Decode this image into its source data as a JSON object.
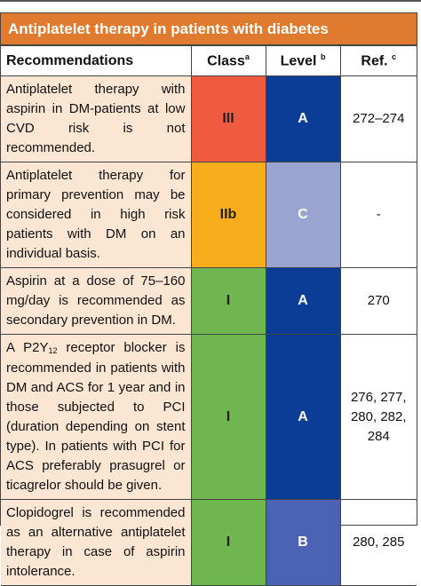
{
  "title": "Antiplatelet therapy in patients with diabetes",
  "headers": {
    "recommendations": "Recommendations",
    "class": "Class",
    "class_sup": "a",
    "level": "Level",
    "level_sup": "b",
    "ref": "Ref.",
    "ref_sup": "c"
  },
  "colors": {
    "title_bg": "#e07a2e",
    "rec_bg": "#fbe6d3",
    "class_III": "#f05a3e",
    "class_IIb": "#f8ae1c",
    "class_I": "#6fb550",
    "level_A": "#0b3c96",
    "level_B": "#4b62b5",
    "level_C": "#9aa4d0"
  },
  "rows": [
    {
      "recommendation": "Antiplatelet therapy with aspirin in DM-patients at low CVD risk is not recommended.",
      "class": "III",
      "class_color": "#f05a3e",
      "level": "A",
      "level_color": "#0b3c96",
      "ref": "272–274"
    },
    {
      "recommendation": "Antiplatelet therapy for primary prevention may be considered in high risk patients with DM on an individual basis.",
      "class": "IIb",
      "class_color": "#f8ae1c",
      "level": "C",
      "level_color": "#9aa4d0",
      "ref": "-"
    },
    {
      "recommendation": "Aspirin at a dose of 75–160 mg/day is recommended as secondary prevention in DM.",
      "class": "I",
      "class_color": "#6fb550",
      "level": "A",
      "level_color": "#0b3c96",
      "ref": "270"
    },
    {
      "recommendation_pre": "A P2Y",
      "recommendation_sub": "12",
      "recommendation_post": " receptor blocker is recommended in patients with DM and ACS for 1 year and in those subjected to PCI (duration depending on stent type). In patients with PCI for ACS preferably prasugrel or ticagrelor should be given.",
      "class": "I",
      "class_color": "#6fb550",
      "level": "A",
      "level_color": "#0b3c96",
      "ref": "276, 277, 280, 282, 284"
    },
    {
      "recommendation": "Clopidogrel is recommended as an alternative antiplatelet therapy in case of aspirin intolerance.",
      "class": "I",
      "class_color": "#6fb550",
      "level": "B",
      "level_color": "#4b62b5",
      "ref": "280, 285"
    }
  ]
}
